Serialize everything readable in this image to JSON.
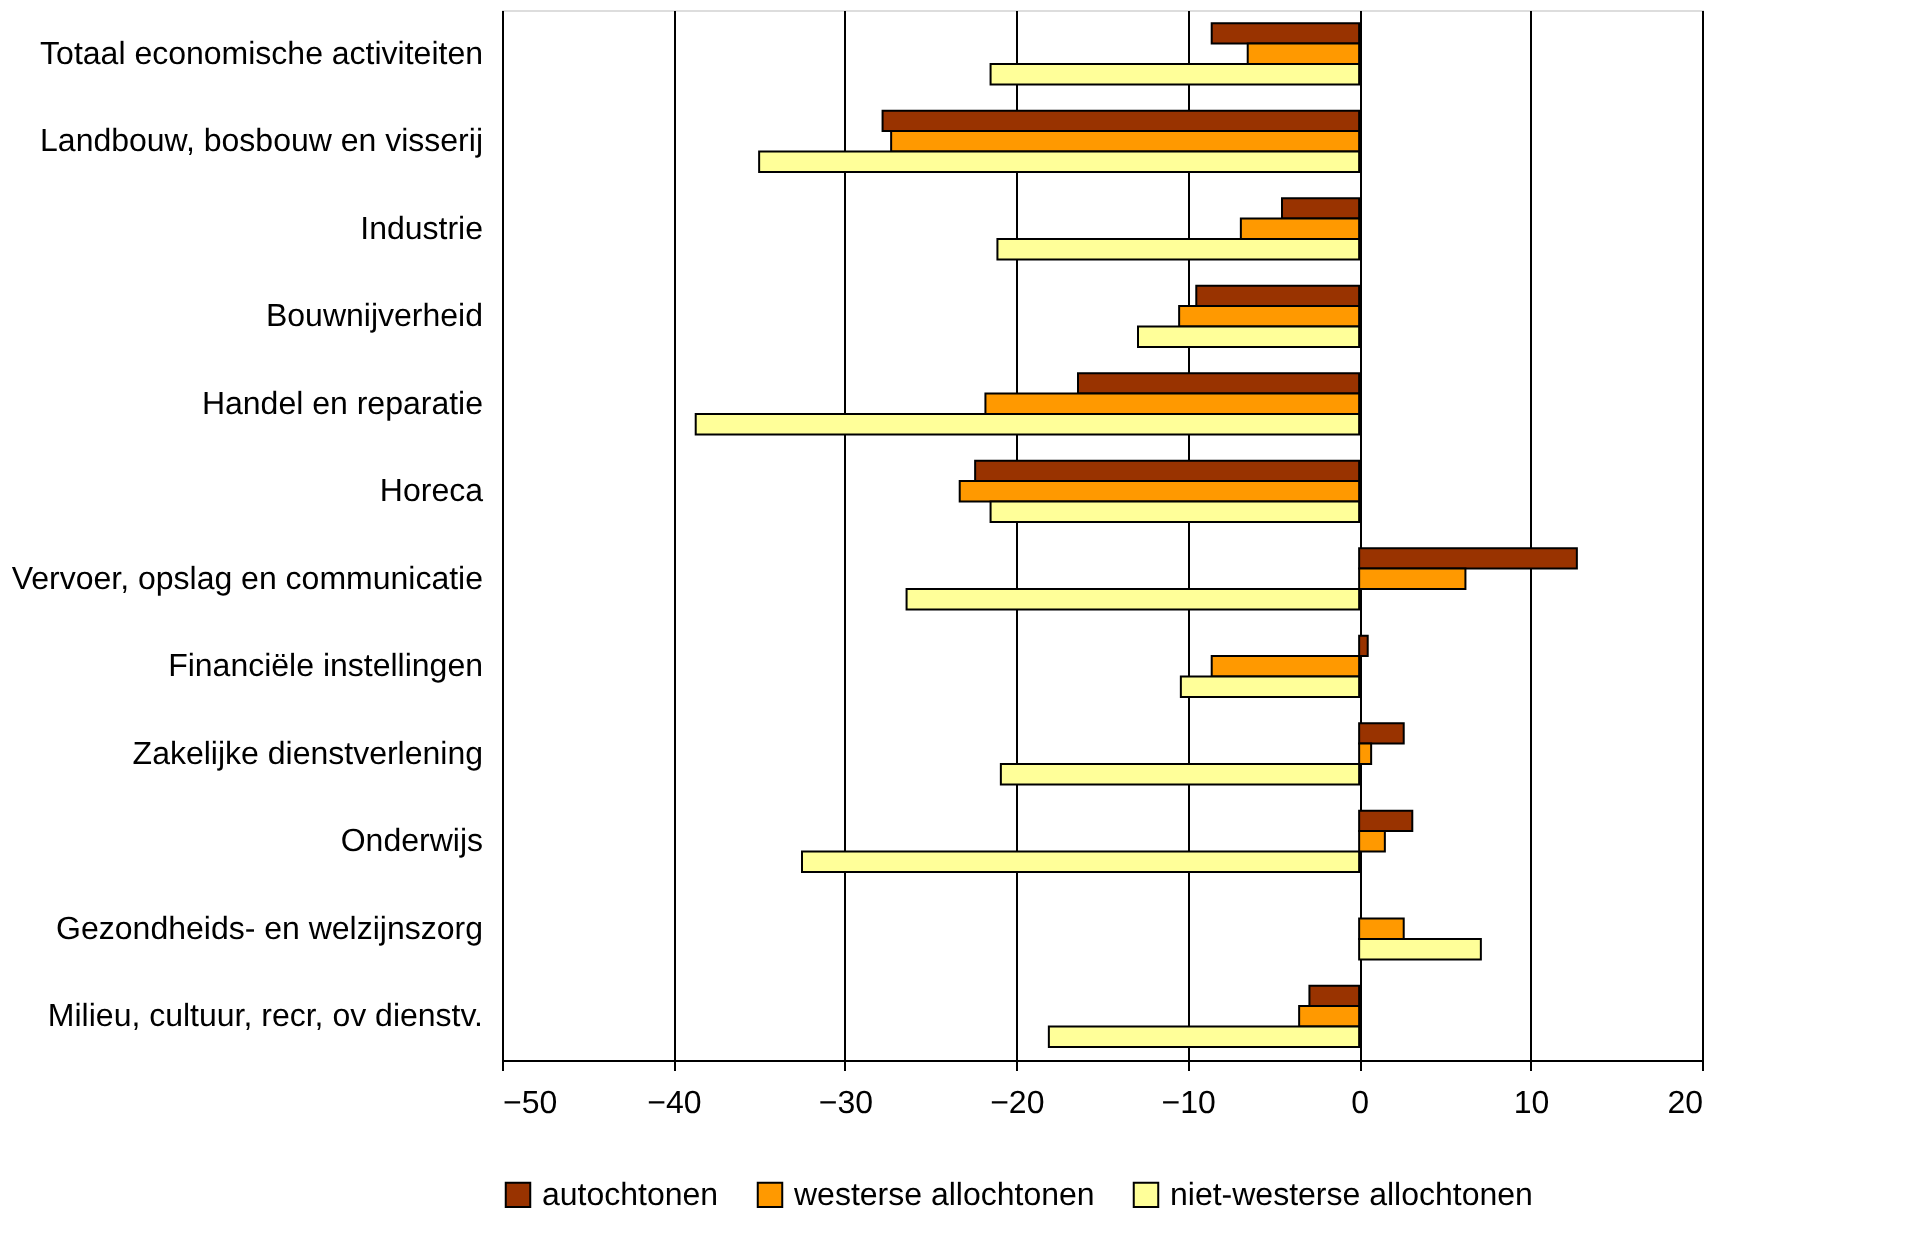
{
  "chart_data": {
    "type": "bar",
    "orientation": "horizontal",
    "categories": [
      "Totaal economische activiteiten",
      "Landbouw, bosbouw en visserij",
      "Industrie",
      "Bouwnijverheid",
      "Handel en reparatie",
      "Horeca",
      "Vervoer, opslag en communicatie",
      "Financiële instellingen",
      "Zakelijke dienstverlening",
      "Onderwijs",
      "Gezondheids- en welzijnszorg",
      "Milieu, cultuur, recr, ov dienstv."
    ],
    "series": [
      {
        "name": "autochtonen",
        "color": "#993300",
        "values": [
          -8.6,
          -27.8,
          -4.5,
          -9.5,
          -16.4,
          -22.4,
          12.7,
          0.5,
          2.6,
          3.1,
          null,
          -2.9
        ]
      },
      {
        "name": "westerse allochtonen",
        "color": "#ff9900",
        "values": [
          -6.5,
          -27.3,
          -6.9,
          -10.5,
          -21.8,
          -23.3,
          6.2,
          -8.6,
          0.7,
          1.5,
          2.6,
          -3.5
        ]
      },
      {
        "name": "niet-westerse allochtonen",
        "color": "#ffff99",
        "values": [
          -21.5,
          -35.0,
          -21.1,
          -12.9,
          -38.7,
          -21.5,
          -26.4,
          -10.4,
          -20.9,
          -32.5,
          7.1,
          -18.1
        ]
      }
    ],
    "xlim": [
      -50,
      20
    ],
    "xticks": [
      -50,
      -40,
      -30,
      -20,
      -10,
      0,
      10,
      20
    ],
    "grid": "x",
    "legend": "bottom"
  }
}
